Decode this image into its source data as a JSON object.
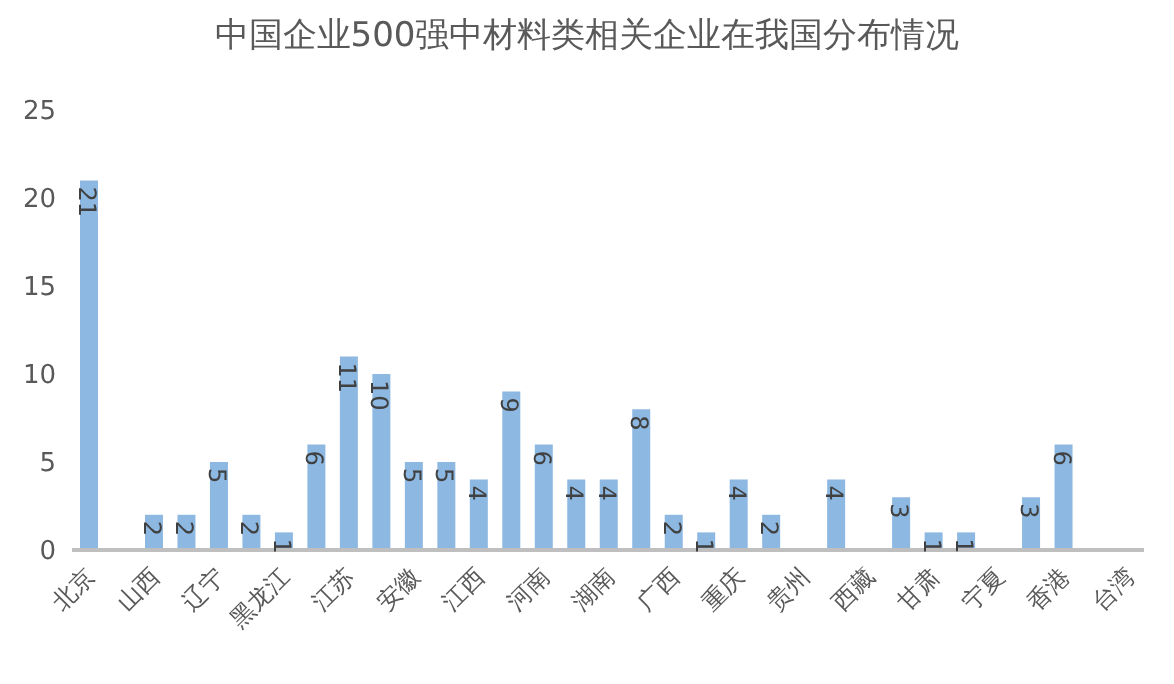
{
  "chart_data": {
    "type": "bar",
    "title": "中国企业500强中材料类相关企业在我国分布情况",
    "categories": [
      "北京",
      null,
      "山西",
      null,
      "辽宁",
      null,
      "黑龙江",
      null,
      "江苏",
      null,
      "安徽",
      null,
      "江西",
      null,
      "河南",
      null,
      "湖南",
      null,
      "广西",
      null,
      "重庆",
      null,
      "贵州",
      null,
      "西藏",
      null,
      "甘肃",
      null,
      "宁夏",
      null,
      "香港",
      null,
      "台湾"
    ],
    "values": [
      21,
      null,
      2,
      2,
      5,
      2,
      1,
      6,
      11,
      10,
      5,
      5,
      4,
      9,
      6,
      4,
      4,
      8,
      2,
      1,
      4,
      2,
      null,
      4,
      null,
      3,
      1,
      1,
      null,
      3,
      6,
      null,
      null
    ],
    "color": "#8db8e2",
    "ylim": [
      0,
      25
    ],
    "yticks": [
      0,
      5,
      10,
      15,
      20,
      25
    ],
    "grid": false,
    "data_labels": true
  }
}
